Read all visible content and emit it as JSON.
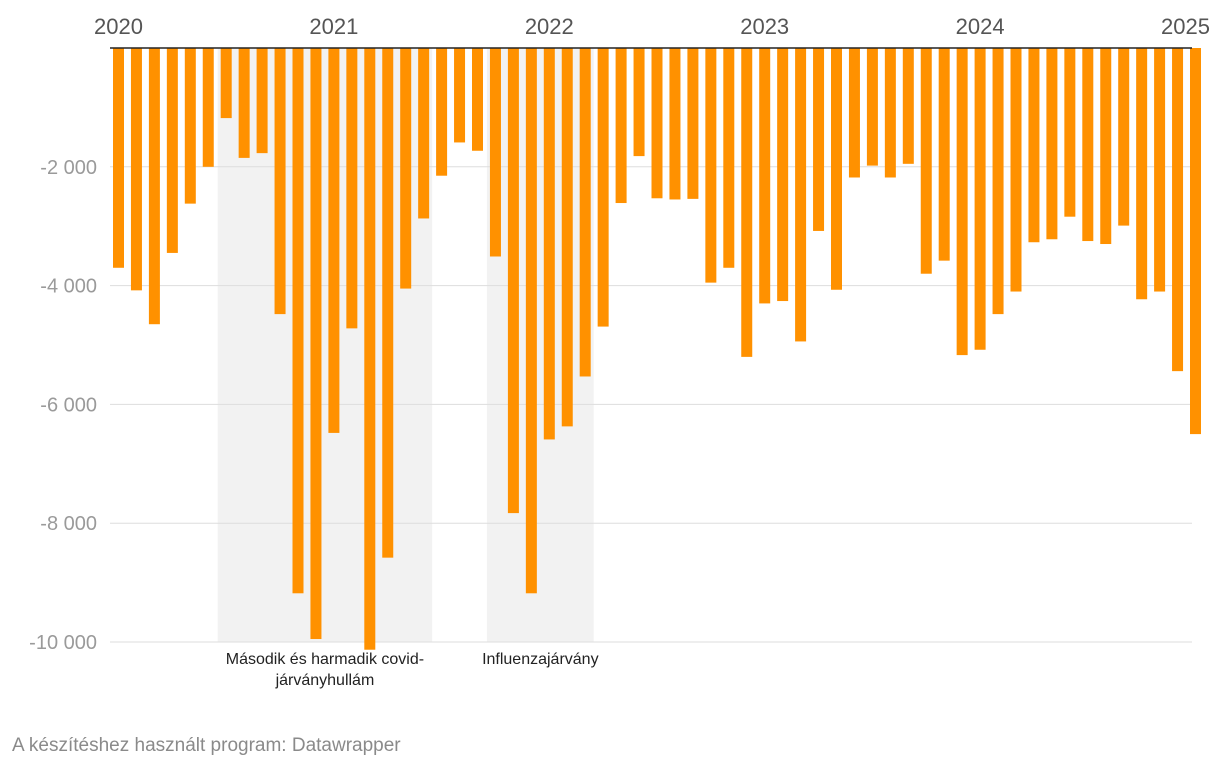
{
  "chart_data": {
    "type": "bar",
    "title": "",
    "xlabel": "",
    "ylabel": "",
    "ylim": [
      -10000,
      0
    ],
    "grid": true,
    "bar_color": "#ff9100",
    "shade_color": "#f2f2f2",
    "x_ticks": [
      "2020",
      "2021",
      "2022",
      "2023",
      "2024",
      "2025"
    ],
    "y_ticks": [
      {
        "value": -2000,
        "label": "-2 000"
      },
      {
        "value": -4000,
        "label": "-4 000"
      },
      {
        "value": -6000,
        "label": "-6 000"
      },
      {
        "value": -8000,
        "label": "-8 000"
      },
      {
        "value": -10000,
        "label": "-10 000"
      }
    ],
    "categories": [
      "2020-01",
      "2020-02",
      "2020-03",
      "2020-04",
      "2020-05",
      "2020-06",
      "2020-07",
      "2020-08",
      "2020-09",
      "2020-10",
      "2020-11",
      "2020-12",
      "2021-01",
      "2021-02",
      "2021-03",
      "2021-04",
      "2021-05",
      "2021-06",
      "2021-07",
      "2021-08",
      "2021-09",
      "2021-10",
      "2021-11",
      "2021-12",
      "2022-01",
      "2022-02",
      "2022-03",
      "2022-04",
      "2022-05",
      "2022-06",
      "2022-07",
      "2022-08",
      "2022-09",
      "2022-10",
      "2022-11",
      "2022-12",
      "2023-01",
      "2023-02",
      "2023-03",
      "2023-04",
      "2023-05",
      "2023-06",
      "2023-07",
      "2023-08",
      "2023-09",
      "2023-10",
      "2023-11",
      "2023-12",
      "2024-01",
      "2024-02",
      "2024-03",
      "2024-04",
      "2024-05",
      "2024-06",
      "2024-07",
      "2024-08",
      "2024-09",
      "2024-10",
      "2024-11",
      "2024-12",
      "2025-01"
    ],
    "values": [
      -3700,
      -4080,
      -4650,
      -3450,
      -2620,
      -2000,
      -1180,
      -1850,
      -1770,
      -4480,
      -9180,
      -9950,
      -6480,
      -4720,
      -10130,
      -8580,
      -4050,
      -2870,
      -2150,
      -1590,
      -1730,
      -3510,
      -7830,
      -9180,
      -6590,
      -6370,
      -5530,
      -4690,
      -2610,
      -1820,
      -2530,
      -2550,
      -2540,
      -3950,
      -3700,
      -5200,
      -4300,
      -4260,
      -4940,
      -3080,
      -4070,
      -2180,
      -1980,
      -2180,
      -1950,
      -3800,
      -3580,
      -5170,
      -5080,
      -4480,
      -4100,
      -3270,
      -3220,
      -2840,
      -3250,
      -3300,
      -2990,
      -4230,
      -4100,
      -5440,
      -6500
    ],
    "shaded_periods": [
      {
        "start": "2020-07",
        "end": "2021-06",
        "label_lines": [
          "Második és harmadik covid-",
          "járványhullám"
        ]
      },
      {
        "start": "2021-10",
        "end": "2022-03",
        "label_lines": [
          "Influenzajárvány"
        ]
      }
    ]
  },
  "footer": {
    "credit": "A készítéshez használt program: Datawrapper"
  }
}
